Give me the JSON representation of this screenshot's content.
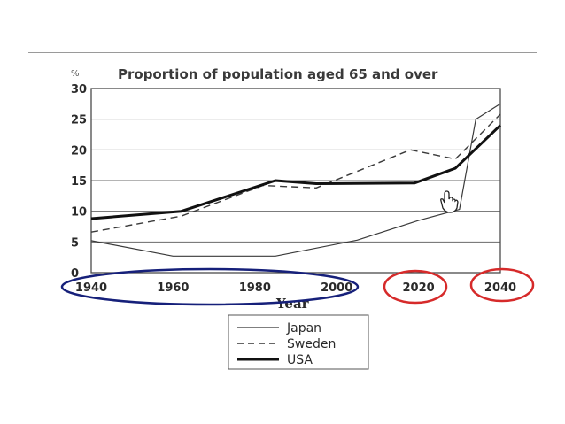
{
  "chart_data": {
    "type": "line",
    "title": "Proportion of population aged 65 and over",
    "ylabel": "%",
    "xlabel": "Year",
    "xlim": [
      1940,
      2040
    ],
    "ylim": [
      0,
      30
    ],
    "x_ticks": [
      "1940",
      "1960",
      "1980",
      "2000",
      "2020",
      "2040"
    ],
    "y_ticks": [
      "0",
      "5",
      "10",
      "15",
      "20",
      "25",
      "30"
    ],
    "grid": "horizontal",
    "legend_position": "bottom",
    "series": [
      {
        "name": "Japan",
        "style": "thin-solid",
        "points": [
          [
            1940,
            5.2
          ],
          [
            1960,
            2.7
          ],
          [
            1985,
            2.7
          ],
          [
            2005,
            5.3
          ],
          [
            2020,
            8.5
          ],
          [
            2030,
            10.3
          ],
          [
            2034,
            25.0
          ],
          [
            2040,
            27.5
          ]
        ]
      },
      {
        "name": "Sweden",
        "style": "dashed",
        "points": [
          [
            1940,
            6.6
          ],
          [
            1962,
            9.2
          ],
          [
            1982,
            14.2
          ],
          [
            1995,
            13.8
          ],
          [
            2018,
            20.0
          ],
          [
            2029,
            18.5
          ],
          [
            2040,
            25.8
          ]
        ]
      },
      {
        "name": "USA",
        "style": "thick-solid",
        "points": [
          [
            1940,
            8.8
          ],
          [
            1962,
            10.0
          ],
          [
            1985,
            15.0
          ],
          [
            1995,
            14.5
          ],
          [
            2019,
            14.6
          ],
          [
            2029,
            17.0
          ],
          [
            2040,
            24.0
          ]
        ]
      }
    ],
    "annotations": [
      {
        "shape": "ellipse",
        "color": "#16207a",
        "encloses": [
          "1940",
          "1960",
          "1980",
          "2000"
        ]
      },
      {
        "shape": "ellipse",
        "color": "#d62a2a",
        "encloses": [
          "2020"
        ]
      },
      {
        "shape": "ellipse",
        "color": "#d62a2a",
        "encloses": [
          "2040"
        ]
      }
    ]
  },
  "cursor_icon": "hand-pointer-icon"
}
